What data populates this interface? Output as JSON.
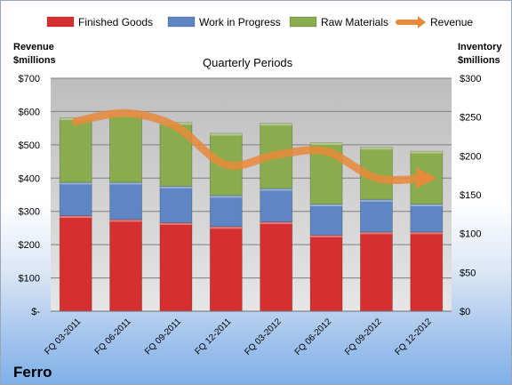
{
  "company": "Ferro",
  "chart_data": {
    "type": "bar",
    "stacked": true,
    "title": "Quarterly Periods",
    "categories": [
      "FQ 03-2011",
      "FQ 06-2011",
      "FQ 09-2011",
      "FQ 12-2011",
      "FQ 03-2012",
      "FQ 06-2012",
      "FQ 09-2012",
      "FQ 12-2012"
    ],
    "left_axis_label": [
      "Revenue",
      "$millions"
    ],
    "right_axis_label": [
      "Inventory",
      "$millions"
    ],
    "left_ylim": [
      0,
      700
    ],
    "right_ylim": [
      0,
      300
    ],
    "left_ticks": [
      "$-",
      "$100",
      "$200",
      "$300",
      "$400",
      "$500",
      "$600",
      "$700"
    ],
    "right_ticks": [
      "$0",
      "$50",
      "$100",
      "$150",
      "$200",
      "$250",
      "$300"
    ],
    "grid": true,
    "legend_position": "top",
    "series": [
      {
        "name": "Finished Goods",
        "axis": "right",
        "color": "#d62f2f",
        "values": [
          123,
          118,
          114,
          109,
          115,
          98,
          102,
          102
        ]
      },
      {
        "name": "Work in Progress",
        "axis": "right",
        "color": "#5f86c4",
        "values": [
          43,
          48,
          47,
          40,
          43,
          40,
          42,
          36
        ]
      },
      {
        "name": "Raw Materials",
        "axis": "right",
        "color": "#88ac4e",
        "values": [
          83,
          88,
          82,
          80,
          84,
          79,
          67,
          68
        ]
      },
      {
        "name": "Revenue",
        "axis": "left",
        "type": "line",
        "color": "#e78a3a",
        "values": [
          570,
          595,
          555,
          440,
          470,
          480,
          400,
          400
        ]
      }
    ]
  }
}
